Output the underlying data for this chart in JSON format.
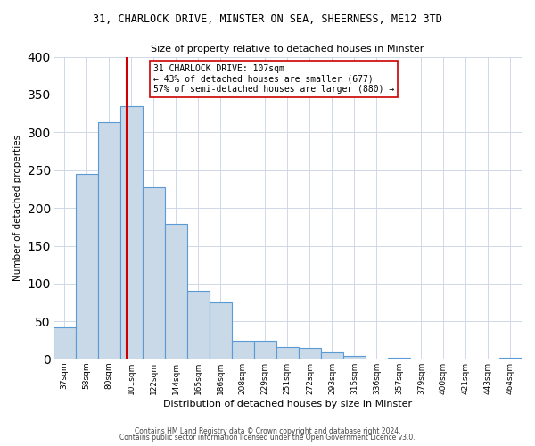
{
  "title": "31, CHARLOCK DRIVE, MINSTER ON SEA, SHEERNESS, ME12 3TD",
  "subtitle": "Size of property relative to detached houses in Minster",
  "xlabel": "Distribution of detached houses by size in Minster",
  "ylabel": "Number of detached properties",
  "bin_labels": [
    "37sqm",
    "58sqm",
    "80sqm",
    "101sqm",
    "122sqm",
    "144sqm",
    "165sqm",
    "186sqm",
    "208sqm",
    "229sqm",
    "251sqm",
    "272sqm",
    "293sqm",
    "315sqm",
    "336sqm",
    "357sqm",
    "379sqm",
    "400sqm",
    "421sqm",
    "443sqm",
    "464sqm"
  ],
  "bar_heights": [
    42,
    245,
    313,
    335,
    227,
    179,
    90,
    75,
    25,
    25,
    16,
    15,
    9,
    4,
    0,
    2,
    0,
    0,
    0,
    0,
    2
  ],
  "bar_color": "#c9d9e8",
  "bar_edgecolor": "#5b9bd5",
  "ylim": [
    0,
    400
  ],
  "yticks": [
    0,
    50,
    100,
    150,
    200,
    250,
    300,
    350,
    400
  ],
  "vline_color": "#cc0000",
  "vline_sqm": 107,
  "bin_start_sqm": [
    37,
    58,
    80,
    101,
    122,
    144,
    165,
    186,
    208,
    229,
    251,
    272,
    293,
    315,
    336,
    357,
    379,
    400,
    421,
    443,
    464
  ],
  "annotation_title": "31 CHARLOCK DRIVE: 107sqm",
  "annotation_line1": "← 43% of detached houses are smaller (677)",
  "annotation_line2": "57% of semi-detached houses are larger (880) →",
  "annotation_box_edgecolor": "#cc0000",
  "footer_line1": "Contains HM Land Registry data © Crown copyright and database right 2024.",
  "footer_line2": "Contains public sector information licensed under the Open Government Licence v3.0.",
  "bg_color": "#ffffff",
  "grid_color": "#d0d8e8"
}
